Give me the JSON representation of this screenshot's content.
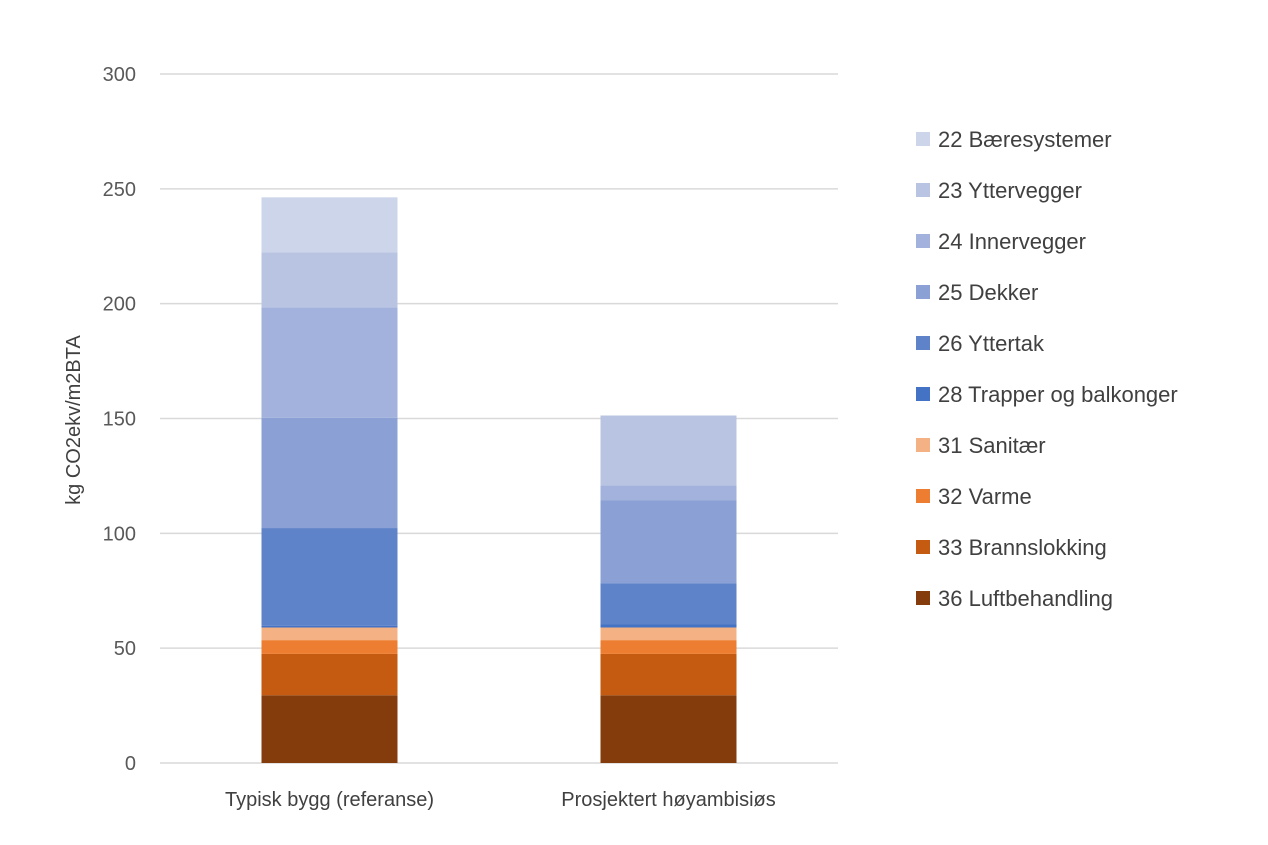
{
  "chart_data": {
    "type": "bar",
    "stacked": true,
    "title": "",
    "xlabel": "",
    "ylabel": "kg CO2ekv/m2BTA",
    "ylim": [
      0,
      300
    ],
    "yticks": [
      0,
      50,
      100,
      150,
      200,
      250,
      300
    ],
    "grid": true,
    "legend_position": "right",
    "categories": [
      "Typisk bygg (referanse)",
      "Prosjektert høyambisiøs"
    ],
    "series": [
      {
        "name": "36 Luftbehandling",
        "color": "#843C0C",
        "values": [
          29.5,
          29.5
        ]
      },
      {
        "name": "33 Brannslokking",
        "color": "#C55A11",
        "values": [
          18,
          18
        ]
      },
      {
        "name": "32 Varme",
        "color": "#ED7D31",
        "values": [
          6,
          6
        ]
      },
      {
        "name": "31 Sanitær",
        "color": "#F4B183",
        "values": [
          5.5,
          5.5
        ]
      },
      {
        "name": "28 Trapper og balkonger",
        "color": "#4472C4",
        "values": [
          0.8,
          1.3
        ]
      },
      {
        "name": "26 Yttertak",
        "color": "#5F83C9",
        "values": [
          42.5,
          18
        ]
      },
      {
        "name": "25 Dekker",
        "color": "#8BA1D5",
        "values": [
          48,
          36
        ]
      },
      {
        "name": "24 Innervegger",
        "color": "#A2B2DC",
        "values": [
          48,
          6.5
        ]
      },
      {
        "name": "23 Yttervegger",
        "color": "#B9C4E2",
        "values": [
          24,
          30.5
        ]
      },
      {
        "name": "22 Bæresystemer",
        "color": "#CDD5EA",
        "values": [
          24,
          0
        ]
      }
    ]
  }
}
